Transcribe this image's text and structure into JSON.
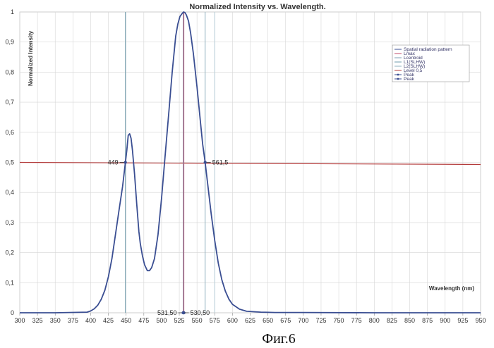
{
  "chart_data": {
    "type": "line",
    "title": "Normalized Intensity vs. Wavelength.",
    "xlabel": "Wavelength (nm)",
    "ylabel": "Normalized Intensity",
    "xlim": [
      300,
      950
    ],
    "ylim": [
      0,
      1
    ],
    "x_ticks": [
      "300",
      "325",
      "350",
      "375",
      "400",
      "425",
      "450",
      "475",
      "500",
      "525",
      "550",
      "575",
      "600",
      "625",
      "650",
      "675",
      "700",
      "725",
      "750",
      "775",
      "800",
      "825",
      "850",
      "875",
      "900",
      "925",
      "950"
    ],
    "y_ticks": [
      "0",
      "0,1",
      "0,2",
      "0,3",
      "0,4",
      "0,5",
      "0,6",
      "0,7",
      "0,8",
      "0,9",
      "1"
    ],
    "grid": true,
    "legend_position": "top-right",
    "legend": [
      "Spatial radiation pattern",
      "Lmax",
      "Lcentroid",
      "L1(SLHW)",
      "L2(SLHW)",
      "Level 0,5",
      "Peak",
      "Peak"
    ],
    "series": [
      {
        "name": "Spatial radiation pattern",
        "color": "#3a4e92",
        "x": [
          300,
          350,
          395,
          400,
          405,
          410,
          415,
          420,
          425,
          430,
          435,
          440,
          445,
          447,
          449,
          451,
          453,
          455,
          457,
          459,
          462,
          465,
          468,
          470,
          473,
          476,
          480,
          483,
          486,
          490,
          495,
          500,
          505,
          510,
          515,
          520,
          523,
          526,
          529,
          531,
          533,
          535,
          538,
          541,
          545,
          550,
          555,
          558,
          561.5,
          565,
          570,
          575,
          580,
          585,
          590,
          595,
          600,
          610,
          620,
          640,
          660,
          700,
          800,
          900,
          950
        ],
        "y": [
          0,
          0,
          0.002,
          0.006,
          0.013,
          0.025,
          0.045,
          0.075,
          0.12,
          0.18,
          0.26,
          0.34,
          0.42,
          0.46,
          0.5,
          0.54,
          0.59,
          0.595,
          0.58,
          0.54,
          0.46,
          0.36,
          0.27,
          0.23,
          0.19,
          0.16,
          0.14,
          0.14,
          0.15,
          0.18,
          0.26,
          0.38,
          0.52,
          0.66,
          0.8,
          0.92,
          0.96,
          0.985,
          0.995,
          1.0,
          0.998,
          0.99,
          0.97,
          0.93,
          0.86,
          0.75,
          0.63,
          0.56,
          0.5,
          0.43,
          0.33,
          0.24,
          0.165,
          0.11,
          0.072,
          0.045,
          0.028,
          0.012,
          0.005,
          0.002,
          0.001,
          0.001,
          0,
          0,
          0
        ]
      }
    ],
    "level_line": {
      "name": "Level 0,5",
      "y_start": 0.5,
      "y_end": 0.493,
      "color": "#b33b3b"
    },
    "vlines": [
      {
        "name": "Lmax",
        "x": 531.5,
        "color": "#c24a6a"
      },
      {
        "name": "Lcentroid",
        "x": 530.5,
        "color": "#7f9fb5"
      },
      {
        "name": "L1(SLHW)",
        "x": 449,
        "color": "#6f9cac"
      },
      {
        "name": "L2(SLHW)",
        "x": 561.5,
        "color": "#8fb0bd"
      },
      {
        "name": "marker",
        "x": 575,
        "color": "#b5ccd6"
      }
    ],
    "annotations": [
      {
        "text": "449",
        "x": 449,
        "y": 0.5,
        "side": "left"
      },
      {
        "text": "561,5",
        "x": 561.5,
        "y": 0.5,
        "side": "right"
      },
      {
        "text": "531,50",
        "x": 531.5,
        "y": 0,
        "side": "left"
      },
      {
        "text": "530,50",
        "x": 530.5,
        "y": 0,
        "side": "right"
      }
    ]
  },
  "caption": "Фиг.6"
}
